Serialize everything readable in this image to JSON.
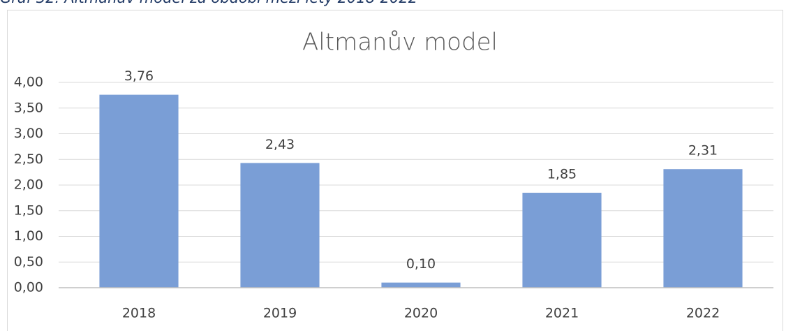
{
  "caption": "Graf 32: Altmanův model za období mezi lety 2018-2022",
  "chart_data": {
    "type": "bar",
    "title": "Altmanův model",
    "categories": [
      "2018",
      "2019",
      "2020",
      "2021",
      "2022"
    ],
    "values": [
      3.76,
      2.43,
      0.1,
      1.85,
      2.31
    ],
    "value_labels": [
      "3,76",
      "2,43",
      "0,10",
      "1,85",
      "2,31"
    ],
    "color": "#7a9ed6",
    "ylim": [
      0,
      4
    ],
    "yticks": [
      {
        "value": 0,
        "label": "0,00"
      },
      {
        "value": 0.5,
        "label": "0,50"
      },
      {
        "value": 1,
        "label": "1,00"
      },
      {
        "value": 1.5,
        "label": "1,50"
      },
      {
        "value": 2,
        "label": "2,00"
      },
      {
        "value": 2.5,
        "label": "2,50"
      },
      {
        "value": 3,
        "label": "3,00"
      },
      {
        "value": 3.5,
        "label": "3,50"
      },
      {
        "value": 4,
        "label": "4,00"
      }
    ],
    "grid": true
  }
}
